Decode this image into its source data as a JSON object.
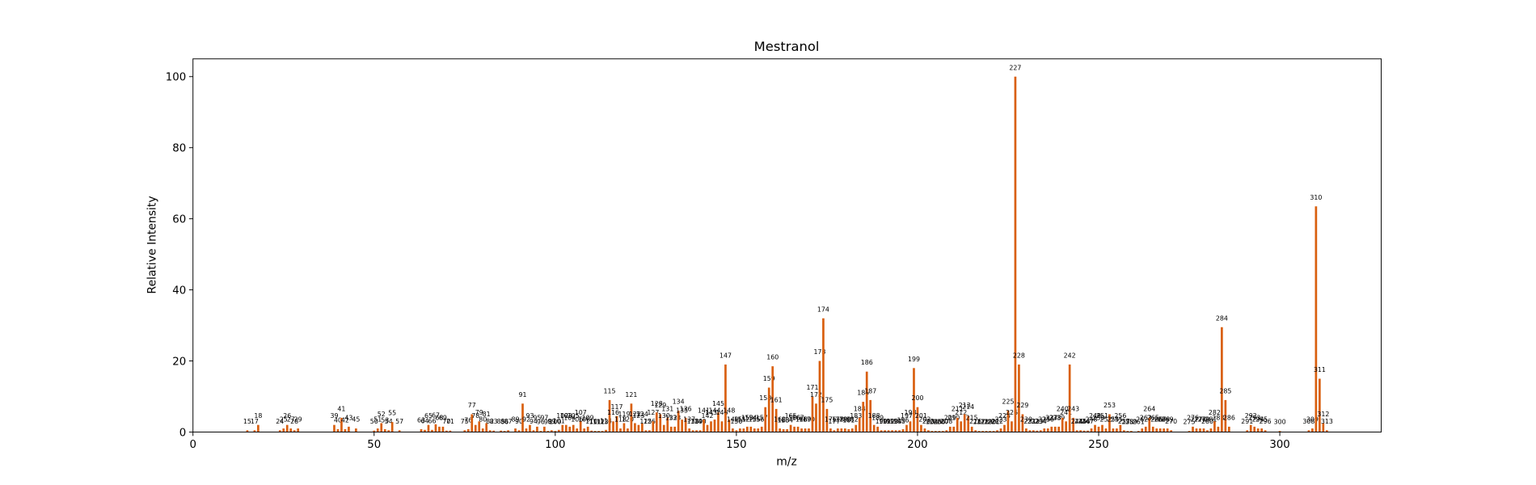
{
  "chart_data": {
    "type": "bar",
    "title": "Mestranol",
    "x_label": "m/z",
    "y_label": "Relative Intensity",
    "color": "#d95f0e",
    "x": [
      15,
      17,
      18,
      24,
      25,
      26,
      27,
      28,
      29,
      39,
      40,
      41,
      42,
      43,
      45,
      50,
      51,
      52,
      53,
      54,
      55,
      57,
      63,
      64,
      65,
      66,
      67,
      68,
      69,
      70,
      71,
      75,
      76,
      77,
      78,
      79,
      80,
      81,
      82,
      83,
      85,
      86,
      87,
      89,
      90,
      91,
      92,
      93,
      94,
      95,
      96,
      97,
      98,
      99,
      100,
      101,
      102,
      103,
      104,
      105,
      106,
      107,
      108,
      109,
      110,
      111,
      112,
      113,
      114,
      115,
      116,
      117,
      118,
      119,
      120,
      121,
      122,
      123,
      124,
      125,
      126,
      127,
      128,
      129,
      130,
      131,
      132,
      133,
      134,
      135,
      136,
      137,
      138,
      139,
      140,
      141,
      142,
      143,
      144,
      145,
      146,
      147,
      148,
      149,
      150,
      151,
      152,
      153,
      154,
      155,
      156,
      157,
      158,
      159,
      160,
      161,
      162,
      163,
      164,
      165,
      166,
      167,
      168,
      169,
      170,
      171,
      172,
      173,
      174,
      175,
      176,
      177,
      178,
      179,
      180,
      181,
      182,
      183,
      184,
      185,
      186,
      187,
      188,
      189,
      190,
      191,
      192,
      193,
      194,
      195,
      196,
      197,
      198,
      199,
      200,
      201,
      202,
      203,
      204,
      205,
      206,
      207,
      208,
      209,
      210,
      211,
      212,
      213,
      214,
      215,
      216,
      217,
      218,
      219,
      220,
      221,
      222,
      223,
      224,
      225,
      226,
      227,
      228,
      229,
      230,
      231,
      232,
      233,
      234,
      235,
      236,
      237,
      238,
      239,
      240,
      241,
      242,
      243,
      244,
      245,
      246,
      247,
      248,
      249,
      250,
      251,
      252,
      253,
      254,
      255,
      256,
      257,
      258,
      259,
      261,
      262,
      263,
      264,
      265,
      266,
      267,
      268,
      269,
      270,
      275,
      276,
      277,
      278,
      279,
      280,
      281,
      282,
      283,
      284,
      285,
      286,
      291,
      292,
      293,
      294,
      295,
      296,
      300,
      308,
      309,
      310,
      311,
      312,
      313
    ],
    "values": [
      0.5,
      0.5,
      2,
      0.5,
      1,
      2,
      1,
      0.5,
      1,
      2,
      0.8,
      4,
      0.8,
      1.5,
      1,
      0.4,
      1,
      2.5,
      0.8,
      0.5,
      2.8,
      0.5,
      0.8,
      0.6,
      2,
      0.6,
      2.2,
      1.5,
      1.5,
      0.4,
      0.4,
      0.5,
      0.8,
      5,
      2,
      3,
      1,
      2.5,
      0.5,
      0.4,
      0.4,
      0.3,
      0.5,
      1,
      0.5,
      8,
      1,
      2,
      0.5,
      1.5,
      0.3,
      1.5,
      0.3,
      0.5,
      0.3,
      0.6,
      2,
      2,
      1.5,
      2,
      1,
      3,
      1,
      1.5,
      0.4,
      0.3,
      0.3,
      0.3,
      0.6,
      9,
      3,
      4.5,
      1,
      2.5,
      1,
      8,
      2.5,
      2,
      2.5,
      0.5,
      0.5,
      3,
      5.5,
      5,
      2,
      4,
      1.5,
      1.5,
      6,
      3.5,
      4,
      1,
      0.5,
      0.5,
      0.5,
      3.5,
      2,
      3,
      3.5,
      5.5,
      3,
      19,
      3.5,
      1,
      0.5,
      1,
      1,
      1.5,
      1.5,
      1,
      1,
      1.5,
      7,
      12.5,
      18.5,
      6.5,
      1,
      0.8,
      0.8,
      2,
      1.5,
      1.5,
      1,
      1,
      1,
      10,
      8,
      20,
      32,
      6.5,
      1,
      0.5,
      1,
      1,
      1,
      0.8,
      1,
      2,
      4,
      8.5,
      17,
      9,
      2,
      1.5,
      0.5,
      0.5,
      0.5,
      0.5,
      0.5,
      0.5,
      0.8,
      2,
      3,
      18,
      7,
      2,
      1,
      0.5,
      0.3,
      0.3,
      0.3,
      0.3,
      0.5,
      1.5,
      1.5,
      4,
      3,
      5,
      4.5,
      1.5,
      0.5,
      0.3,
      0.3,
      0.3,
      0.3,
      0.3,
      0.5,
      1,
      2,
      6,
      3,
      100,
      19,
      5,
      1,
      0.5,
      0.5,
      0.4,
      0.5,
      1,
      1,
      1.5,
      1.5,
      1.5,
      4,
      3,
      19,
      4,
      0.5,
      0.5,
      0.4,
      0.4,
      1,
      2,
      1.5,
      2,
      1,
      5,
      1,
      1,
      2,
      0.5,
      0.3,
      0.3,
      0.3,
      1,
      1.5,
      4,
      1.5,
      1,
      1,
      1,
      1,
      0.5,
      0.3,
      1.5,
      1,
      1,
      1,
      0.5,
      1,
      3,
      1.5,
      29.5,
      9,
      1.5,
      0.5,
      2,
      1.5,
      1,
      1,
      0.5,
      0.3,
      0.5,
      1,
      63.5,
      15,
      2.5,
      0.5
    ],
    "xlim": [
      0,
      328
    ],
    "ylim": [
      0,
      105
    ],
    "xticks": [
      0,
      50,
      100,
      150,
      200,
      250,
      300
    ],
    "yticks": [
      0,
      20,
      40,
      60,
      80,
      100
    ]
  }
}
